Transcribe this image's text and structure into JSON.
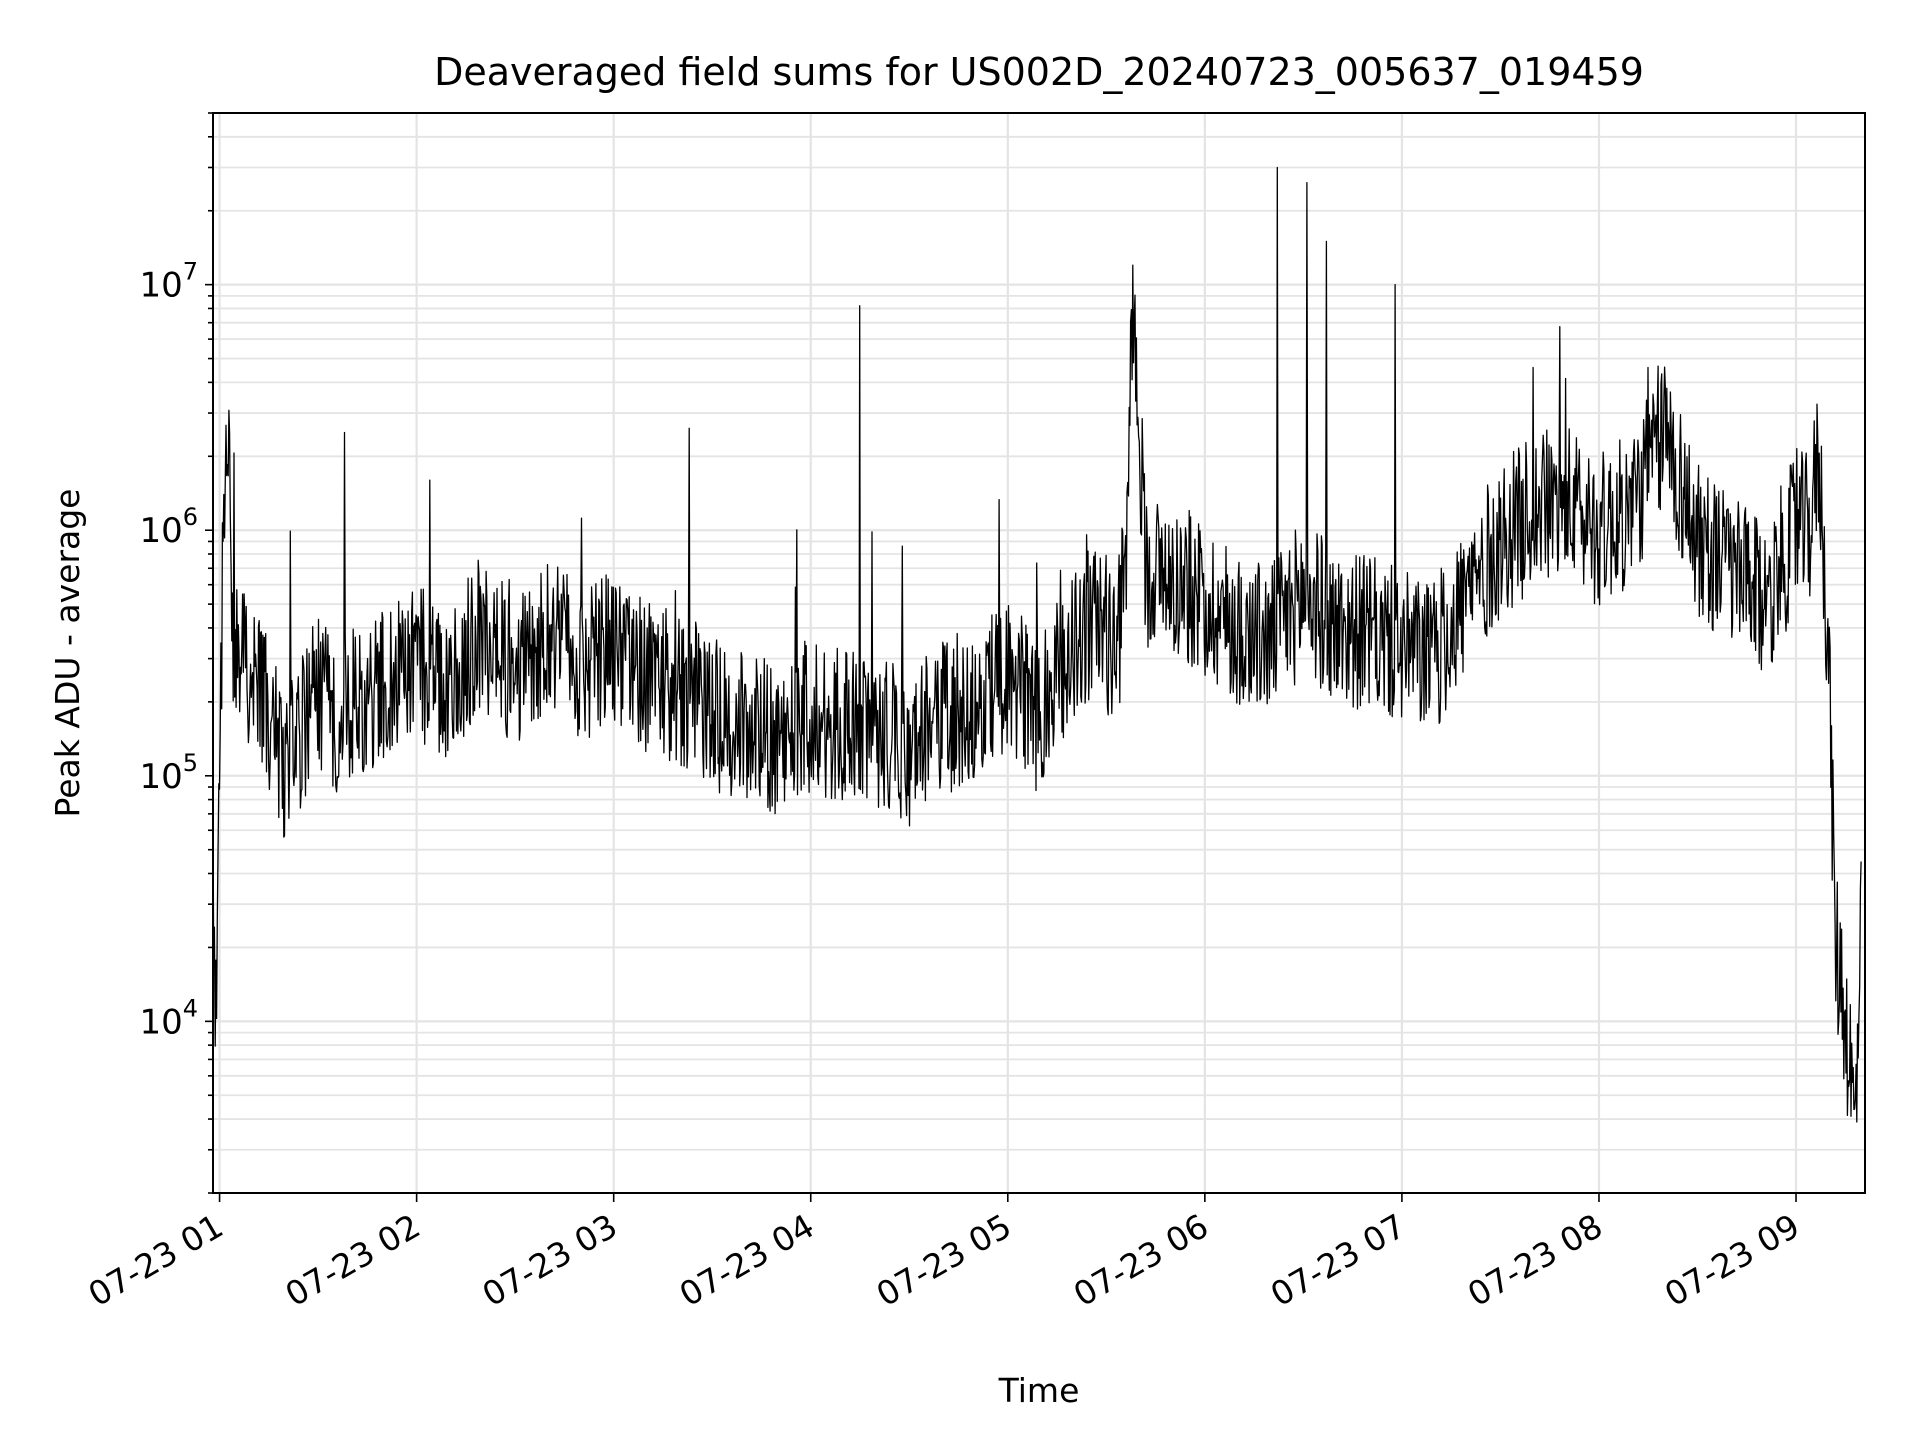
{
  "chart_data": {
    "type": "line",
    "title": "Deaveraged field sums for US002D_20240723_005637_019459",
    "xlabel": "Time",
    "ylabel": "Peak ADU - average",
    "xlim": [
      "2024-07-23 00:58",
      "2024-07-23 09:21"
    ],
    "ylim": [
      2000,
      50000000
    ],
    "yscale": "log",
    "grid": true,
    "legend": "none",
    "x_ticks": [
      "07-23 01",
      "07-23 02",
      "07-23 03",
      "07-23 04",
      "07-23 05",
      "07-23 06",
      "07-23 07",
      "07-23 08",
      "07-23 09"
    ],
    "y_ticks": [
      {
        "base": "10",
        "exp": "4",
        "value": 10000
      },
      {
        "base": "10",
        "exp": "5",
        "value": 100000
      },
      {
        "base": "10",
        "exp": "6",
        "value": 1000000
      },
      {
        "base": "10",
        "exp": "7",
        "value": 10000000
      }
    ],
    "series": [
      {
        "color": "#000000",
        "x": [
          "2024-07-23 00:58",
          "2024-07-23 00:59",
          "2024-07-23 01:00",
          "2024-07-23 01:01",
          "2024-07-23 01:02",
          "2024-07-23 01:03",
          "2024-07-23 01:04",
          "2024-07-23 01:05",
          "2024-07-23 01:06",
          "2024-07-23 01:08",
          "2024-07-23 01:10",
          "2024-07-23 01:15",
          "2024-07-23 01:20",
          "2024-07-23 01:25",
          "2024-07-23 01:30",
          "2024-07-23 01:35",
          "2024-07-23 01:40",
          "2024-07-23 01:45",
          "2024-07-23 01:50",
          "2024-07-23 02:00",
          "2024-07-23 02:10",
          "2024-07-23 02:20",
          "2024-07-23 02:30",
          "2024-07-23 02:40",
          "2024-07-23 02:50",
          "2024-07-23 03:00",
          "2024-07-23 03:10",
          "2024-07-23 03:20",
          "2024-07-23 03:30",
          "2024-07-23 03:40",
          "2024-07-23 03:50",
          "2024-07-23 04:00",
          "2024-07-23 04:10",
          "2024-07-23 04:20",
          "2024-07-23 04:30",
          "2024-07-23 04:40",
          "2024-07-23 04:50",
          "2024-07-23 05:00",
          "2024-07-23 05:10",
          "2024-07-23 05:20",
          "2024-07-23 05:28",
          "2024-07-23 05:33",
          "2024-07-23 05:36",
          "2024-07-23 05:38",
          "2024-07-23 05:42",
          "2024-07-23 05:50",
          "2024-07-23 06:00",
          "2024-07-23 06:10",
          "2024-07-23 06:20",
          "2024-07-23 06:30",
          "2024-07-23 06:40",
          "2024-07-23 06:50",
          "2024-07-23 07:00",
          "2024-07-23 07:10",
          "2024-07-23 07:20",
          "2024-07-23 07:30",
          "2024-07-23 07:40",
          "2024-07-23 07:50",
          "2024-07-23 08:00",
          "2024-07-23 08:10",
          "2024-07-23 08:15",
          "2024-07-23 08:20",
          "2024-07-23 08:30",
          "2024-07-23 08:40",
          "2024-07-23 08:50",
          "2024-07-23 09:00",
          "2024-07-23 09:04",
          "2024-07-23 09:07",
          "2024-07-23 09:10",
          "2024-07-23 09:12",
          "2024-07-23 09:14",
          "2024-07-23 09:16",
          "2024-07-23 09:18",
          "2024-07-23 09:20"
        ],
        "y": [
          40000,
          8000,
          80000,
          900000,
          2700000,
          1500000,
          300000,
          350000,
          250000,
          300000,
          250000,
          180000,
          110000,
          150000,
          220000,
          170000,
          210000,
          180000,
          240000,
          300000,
          220000,
          400000,
          260000,
          380000,
          280000,
          330000,
          260000,
          230000,
          180000,
          160000,
          140000,
          180000,
          160000,
          150000,
          130000,
          170000,
          200000,
          250000,
          170000,
          350000,
          450000,
          300000,
          700000,
          10000000,
          700000,
          650000,
          520000,
          400000,
          350000,
          550000,
          400000,
          380000,
          330000,
          300000,
          550000,
          900000,
          1200000,
          1300000,
          1000000,
          1200000,
          1800000,
          2600000,
          900000,
          700000,
          500000,
          1000000,
          1000000,
          2000000,
          300000,
          20000,
          14000,
          8000,
          3500,
          30000
        ]
      }
    ],
    "spikes": [
      {
        "x": "2024-07-23 01:38",
        "y": 2500000
      },
      {
        "x": "2024-07-23 02:04",
        "y": 1600000
      },
      {
        "x": "2024-07-23 03:23",
        "y": 2600000
      },
      {
        "x": "2024-07-23 04:15",
        "y": 8200000
      },
      {
        "x": "2024-07-23 05:38",
        "y": 12000000
      },
      {
        "x": "2024-07-23 06:22",
        "y": 30000000
      },
      {
        "x": "2024-07-23 06:31",
        "y": 26000000
      },
      {
        "x": "2024-07-23 06:37",
        "y": 15000000
      },
      {
        "x": "2024-07-23 06:58",
        "y": 10000000
      },
      {
        "x": "2024-07-23 07:40",
        "y": 4600000
      },
      {
        "x": "2024-07-23 08:15",
        "y": 4600000
      }
    ]
  }
}
